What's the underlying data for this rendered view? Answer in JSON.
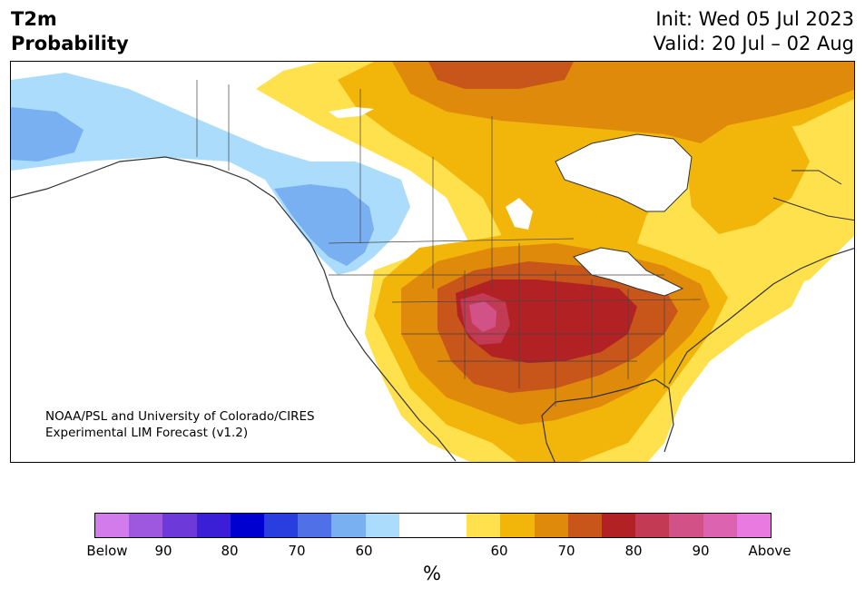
{
  "header": {
    "title_line1": "T2m",
    "title_line2": "Probability",
    "init": "Init: Wed 05 Jul 2023",
    "valid": "Valid: 20 Jul – 02 Aug"
  },
  "credit": {
    "line1": "NOAA/PSL and University of Colorado/CIRES",
    "line2": "Experimental LIM Forecast (v1.2)"
  },
  "colorbar": {
    "colors": [
      "#d27ceb",
      "#9e58e0",
      "#6e39d9",
      "#3a1fd6",
      "#0000d0",
      "#2a3ee0",
      "#5070e8",
      "#78b0f2",
      "#acdcfb",
      "#ffffff",
      "#ffffff",
      "#ffe04d",
      "#f2b50a",
      "#e08a0c",
      "#c85519",
      "#b22224",
      "#c33a55",
      "#d25288",
      "#dc63b0",
      "#e97ae0"
    ],
    "tick_labels": [
      "Below",
      "90",
      "80",
      "70",
      "60",
      "60",
      "70",
      "80",
      "90",
      "Above"
    ],
    "unit": "%"
  },
  "map_colors": {
    "cold_60": "#acdcfb",
    "cold_70": "#78b0f2",
    "warm_50": "#ffe04d",
    "warm_60": "#f2b50a",
    "warm_70": "#e08a0c",
    "warm_80": "#c85519",
    "warm_85": "#b22224",
    "warm_90": "#c33a55",
    "warm_95": "#d25288"
  }
}
